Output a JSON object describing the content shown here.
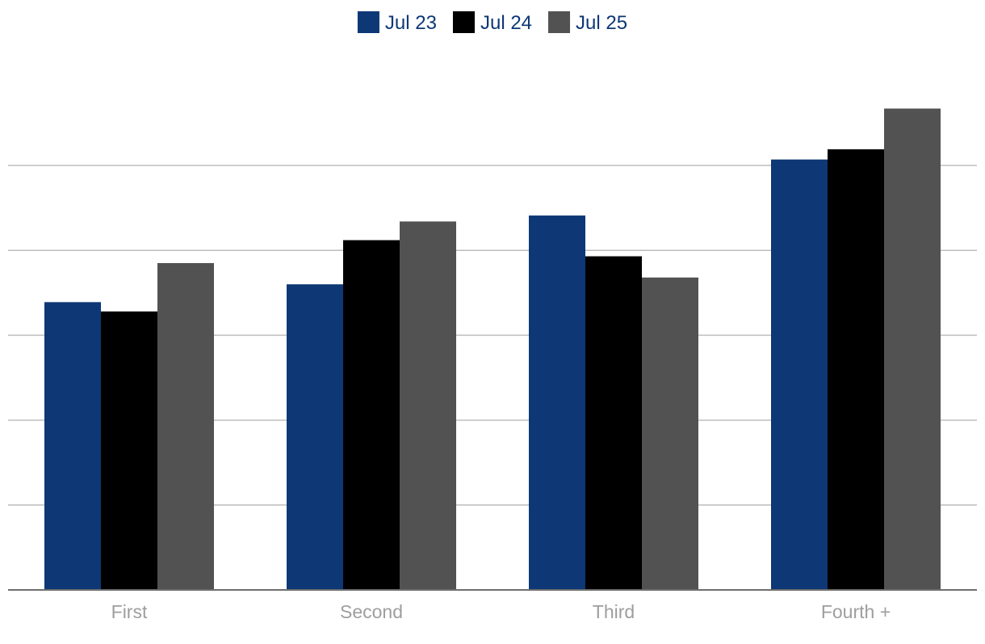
{
  "chart_data": {
    "type": "bar",
    "categories": [
      "First",
      "Second",
      "Third",
      "Fourth +"
    ],
    "series": [
      {
        "name": "Jul 23",
        "values": [
          3.39,
          3.6,
          4.41,
          5.07
        ],
        "color": "#0d3775"
      },
      {
        "name": "Jul 24",
        "values": [
          3.28,
          4.12,
          3.93,
          5.19
        ],
        "color": "#000000"
      },
      {
        "name": "Jul 25",
        "values": [
          3.85,
          4.34,
          3.68,
          5.67
        ],
        "color": "#525252"
      }
    ],
    "ylim": [
      0,
      6
    ],
    "yticks": [
      0,
      1,
      2,
      3,
      4,
      5
    ],
    "y_tick_labels_shown": false,
    "grid": true,
    "legend_position": "top-center",
    "colors": {
      "grid": "#bdbdbd",
      "axis": "#6e6e6e",
      "tick_label": "#9e9e9e",
      "legend_text": "#0d3775"
    }
  }
}
